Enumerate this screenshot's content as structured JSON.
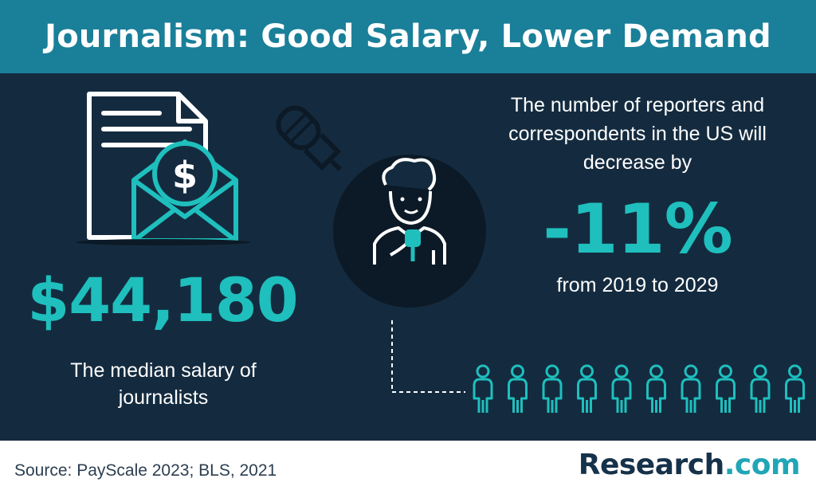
{
  "header": {
    "title": "Journalism: Good Salary, Lower Demand"
  },
  "salary": {
    "value": "$44,180",
    "caption": "The median salary of journalists"
  },
  "reporters": {
    "intro": "The number of reporters and correspondents in the US will decrease by",
    "value": "-11%",
    "caption": "from 2019 to 2029"
  },
  "footer": {
    "source": "Source: PayScale 2023; BLS, 2021",
    "brand_main": "Research",
    "brand_suffix": ".com"
  },
  "icons": {
    "document": "document-icon",
    "envelope": "envelope-icon",
    "dollar": "dollar-icon",
    "microphone": "microphone-icon",
    "reporter": "reporter-icon",
    "person": "person-icon"
  },
  "people_count": 10,
  "colors": {
    "header_bg": "#1a7f99",
    "main_bg": "#142b3f",
    "accent": "#1fbfbd",
    "text": "#ffffff",
    "circle_bg": "#0c1a27",
    "brand_dark": "#16324a",
    "brand_accent": "#20a6b7"
  }
}
